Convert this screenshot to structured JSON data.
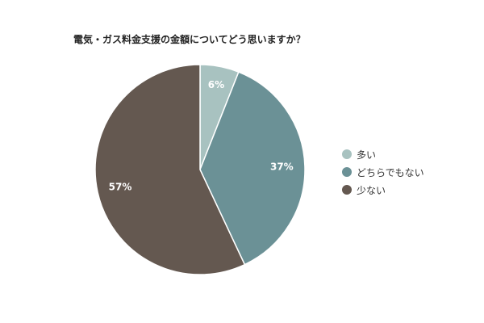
{
  "chart_data": {
    "type": "pie",
    "title": "電気・ガス料金支援の金額についてどう思いますか？",
    "categories": [
      "多い",
      "どちらでもない",
      "少ない"
    ],
    "values": [
      6,
      37,
      57
    ],
    "labels": [
      "6%",
      "37%",
      "57%"
    ],
    "colors": [
      "#a8c2c0",
      "#6b9196",
      "#645850"
    ],
    "legend_position": "right"
  }
}
